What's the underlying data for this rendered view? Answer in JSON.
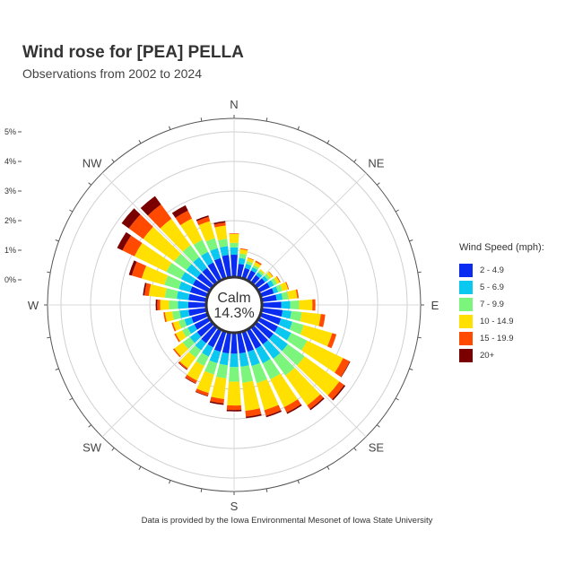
{
  "title": "Wind rose for [PEA] PELLA",
  "subtitle": "Observations from 2002 to 2024",
  "caption": "Data is provided by the Iowa Environmental Mesonet of Iowa State University",
  "chart_data": {
    "type": "wind_rose",
    "calm": {
      "label": "Calm",
      "value": "14.3%"
    },
    "radial_ticks": [
      "0%",
      "1%",
      "2%",
      "3%",
      "4%",
      "5%"
    ],
    "cardinal_labels": [
      "N",
      "NE",
      "E",
      "SE",
      "S",
      "SW",
      "W",
      "NW"
    ],
    "legend": {
      "title": "Wind Speed (mph):",
      "bins": [
        "2 - 4.9",
        "5 - 6.9",
        "7 - 9.9",
        "10 - 14.9",
        "15 - 19.9",
        "20+"
      ],
      "colors": [
        "#0a2bf0",
        "#0ac8f0",
        "#7cf57c",
        "#ffe000",
        "#ff4a00",
        "#7a0000"
      ]
    },
    "units": "percent frequency",
    "direction_step_deg": 10,
    "directions_deg": [
      0,
      10,
      20,
      30,
      40,
      50,
      60,
      70,
      80,
      90,
      100,
      110,
      120,
      130,
      140,
      150,
      160,
      170,
      180,
      190,
      200,
      210,
      220,
      230,
      240,
      250,
      260,
      270,
      280,
      290,
      300,
      310,
      320,
      330,
      340,
      350
    ],
    "frequencies_pct": [
      [
        0.85,
        0.25,
        0.15,
        0.3,
        0.02,
        0.0
      ],
      [
        0.55,
        0.2,
        0.15,
        0.15,
        0.03,
        0.0
      ],
      [
        0.45,
        0.15,
        0.1,
        0.1,
        0.02,
        0.0
      ],
      [
        0.45,
        0.12,
        0.08,
        0.12,
        0.05,
        0.0
      ],
      [
        0.4,
        0.12,
        0.08,
        0.05,
        0.0,
        0.0
      ],
      [
        0.45,
        0.12,
        0.1,
        0.1,
        0.02,
        0.0
      ],
      [
        0.5,
        0.15,
        0.12,
        0.1,
        0.03,
        0.0
      ],
      [
        0.55,
        0.15,
        0.15,
        0.2,
        0.03,
        0.0
      ],
      [
        0.6,
        0.2,
        0.2,
        0.3,
        0.05,
        0.0
      ],
      [
        0.75,
        0.3,
        0.3,
        0.45,
        0.1,
        0.0
      ],
      [
        0.8,
        0.3,
        0.35,
        0.65,
        0.15,
        0.0
      ],
      [
        0.8,
        0.4,
        0.4,
        1.0,
        0.15,
        0.0
      ],
      [
        0.8,
        0.5,
        0.6,
        1.35,
        0.25,
        0.02
      ],
      [
        0.8,
        0.6,
        0.7,
        1.45,
        0.2,
        0.05
      ],
      [
        0.8,
        0.6,
        0.7,
        1.25,
        0.15,
        0.05
      ],
      [
        0.8,
        0.55,
        0.6,
        1.05,
        0.2,
        0.05
      ],
      [
        0.8,
        0.5,
        0.6,
        0.95,
        0.2,
        0.05
      ],
      [
        0.8,
        0.45,
        0.55,
        0.95,
        0.2,
        0.05
      ],
      [
        0.8,
        0.45,
        0.5,
        0.8,
        0.15,
        0.05
      ],
      [
        0.8,
        0.4,
        0.45,
        0.7,
        0.15,
        0.05
      ],
      [
        0.8,
        0.4,
        0.4,
        0.65,
        0.1,
        0.02
      ],
      [
        0.75,
        0.35,
        0.35,
        0.55,
        0.1,
        0.02
      ],
      [
        0.75,
        0.3,
        0.3,
        0.45,
        0.05,
        0.02
      ],
      [
        0.7,
        0.3,
        0.3,
        0.35,
        0.05,
        0.0
      ],
      [
        0.65,
        0.25,
        0.2,
        0.25,
        0.05,
        0.0
      ],
      [
        0.65,
        0.25,
        0.2,
        0.2,
        0.05,
        0.0
      ],
      [
        0.7,
        0.3,
        0.25,
        0.25,
        0.05,
        0.0
      ],
      [
        0.7,
        0.35,
        0.3,
        0.3,
        0.1,
        0.05
      ],
      [
        0.7,
        0.4,
        0.4,
        0.55,
        0.15,
        0.05
      ],
      [
        0.7,
        0.4,
        0.5,
        0.8,
        0.35,
        0.1
      ],
      [
        0.7,
        0.45,
        0.55,
        1.2,
        0.45,
        0.2
      ],
      [
        0.7,
        0.45,
        0.5,
        1.3,
        0.6,
        0.3
      ],
      [
        0.7,
        0.45,
        0.5,
        1.1,
        0.6,
        0.35
      ],
      [
        0.75,
        0.4,
        0.45,
        0.8,
        0.3,
        0.2
      ],
      [
        0.8,
        0.35,
        0.35,
        0.6,
        0.15,
        0.05
      ],
      [
        0.85,
        0.3,
        0.25,
        0.45,
        0.1,
        0.05
      ]
    ]
  }
}
